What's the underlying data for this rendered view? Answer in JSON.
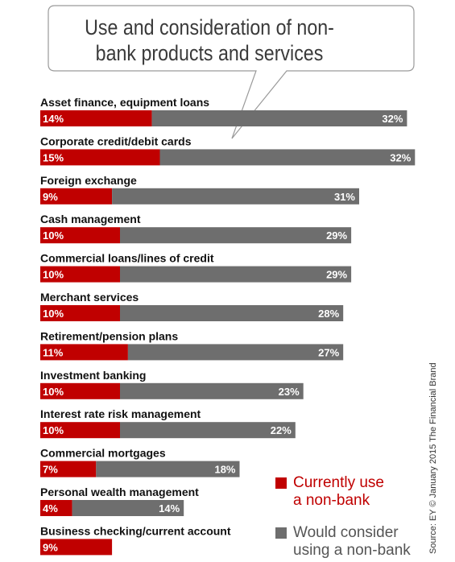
{
  "chart_data": {
    "type": "bar",
    "stacked": true,
    "title": "Use and consideration of non-bank products and services",
    "categories": [
      "Asset finance, equipment loans",
      "Corporate credit/debit cards",
      "Foreign exchange",
      "Cash management",
      "Commercial loans/lines of credit",
      "Merchant services",
      "Retirement/pension plans",
      "Investment banking",
      "Interest rate risk management",
      "Commercial mortgages",
      "Personal wealth management",
      "Business checking/current account"
    ],
    "series": [
      {
        "name": "Currently use a non-bank",
        "color": "#c00000",
        "values": [
          14,
          15,
          9,
          10,
          10,
          10,
          11,
          10,
          10,
          7,
          4,
          9
        ],
        "labels": [
          "14%",
          "15%",
          "9%",
          "10%",
          "10%",
          "10%",
          "11%",
          "10%",
          "10%",
          "7%",
          "4%",
          "9%"
        ]
      },
      {
        "name": "Would consider using a non-bank",
        "color": "#6e6e6e",
        "values": [
          32,
          32,
          31,
          29,
          29,
          28,
          27,
          23,
          22,
          18,
          14,
          0
        ],
        "labels": [
          "32%",
          "32%",
          "31%",
          "29%",
          "29%",
          "28%",
          "27%",
          "23%",
          "22%",
          "18%",
          "14%",
          ""
        ]
      }
    ],
    "legend": {
      "position": "bottom-right"
    },
    "source": "Source: EY © January 2015 The Financial Brand"
  },
  "legend": {
    "current": {
      "line1": "Currently use",
      "line2": "a non-bank",
      "color": "#c00000"
    },
    "consider": {
      "line1": "Would consider",
      "line2": "using a non-bank",
      "color": "#6e6e6e"
    }
  }
}
